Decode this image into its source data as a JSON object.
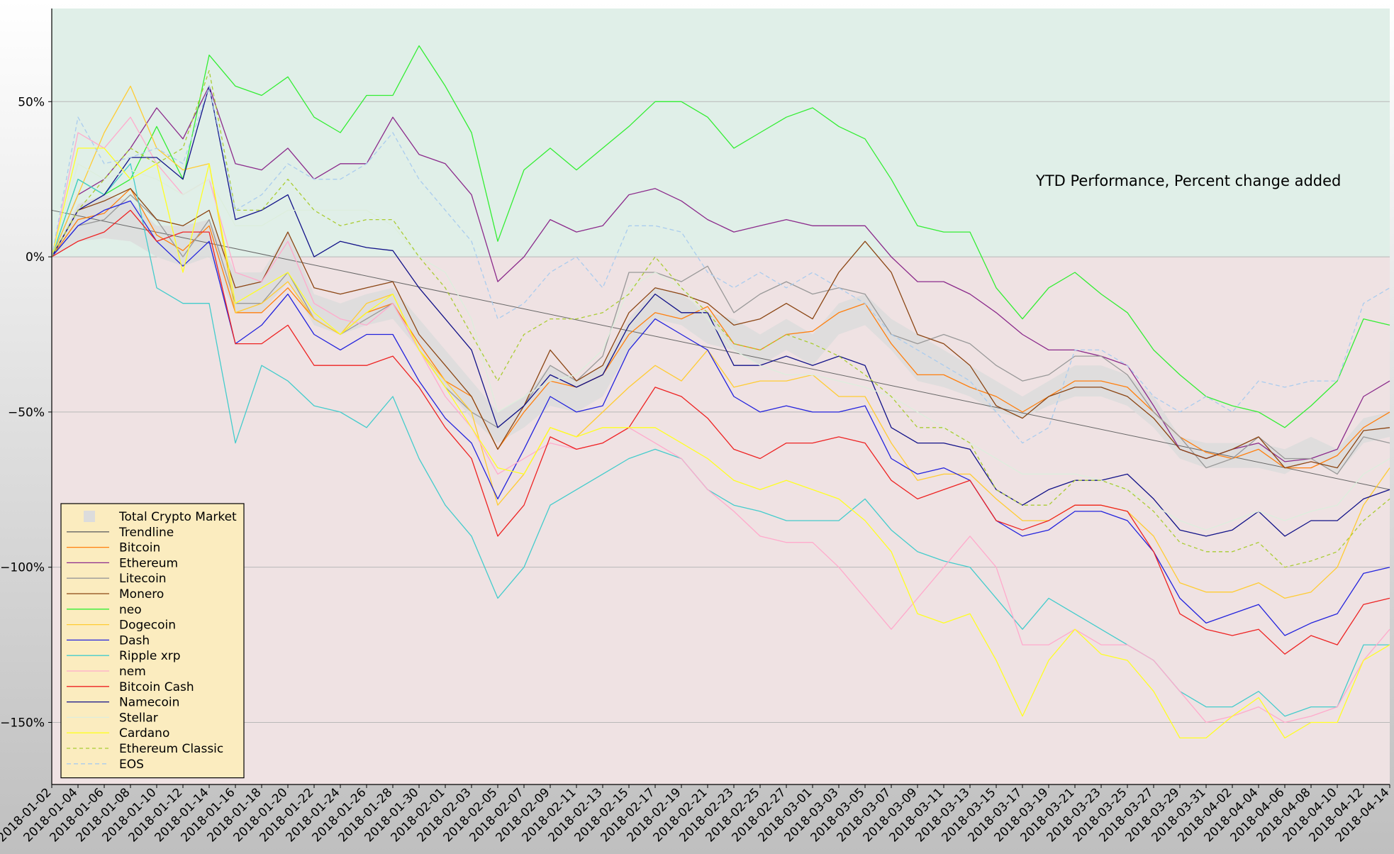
{
  "chart_data": {
    "type": "line",
    "title": "",
    "xlabel": "",
    "ylabel": "",
    "annotation": "YTD  Performance, Percent change added",
    "ylim": [
      -170,
      80
    ],
    "yticks": [
      50,
      0,
      -50,
      -100,
      -150
    ],
    "ytick_labels": [
      "50%",
      "0%",
      "−50%",
      "−100%",
      "−150%"
    ],
    "xlim": [
      "2018-01-02",
      "2018-04-14"
    ],
    "xtick_labels": [
      "2018-01-02",
      "2018-01-04",
      "2018-01-06",
      "2018-01-08",
      "2018-01-10",
      "2018-01-12",
      "2018-01-14",
      "2018-01-16",
      "2018-01-18",
      "2018-01-20",
      "2018-01-22",
      "2018-01-24",
      "2018-01-26",
      "2018-01-28",
      "2018-01-30",
      "2018-02-01",
      "2018-02-03",
      "2018-02-05",
      "2018-02-07",
      "2018-02-09",
      "2018-02-11",
      "2018-02-13",
      "2018-02-15",
      "2018-02-17",
      "2018-02-19",
      "2018-02-21",
      "2018-02-23",
      "2018-02-25",
      "2018-02-27",
      "2018-03-01",
      "2018-03-03",
      "2018-03-05",
      "2018-03-07",
      "2018-03-09",
      "2018-03-11",
      "2018-03-13",
      "2018-03-15",
      "2018-03-17",
      "2018-03-19",
      "2018-03-21",
      "2018-03-23",
      "2018-03-25",
      "2018-03-27",
      "2018-03-29",
      "2018-03-31",
      "2018-04-02",
      "2018-04-04",
      "2018-04-06",
      "2018-04-08",
      "2018-04-10",
      "2018-04-12",
      "2018-04-14"
    ],
    "grid": "horizontal",
    "legend_position": "lower-left",
    "background_bands": {
      "positive": "#e0efe8",
      "negative": "#efe2e3",
      "market_band": "#dcdcdc"
    },
    "dates": [
      "2018-01-02",
      "2018-01-04",
      "2018-01-06",
      "2018-01-08",
      "2018-01-10",
      "2018-01-12",
      "2018-01-14",
      "2018-01-16",
      "2018-01-18",
      "2018-01-20",
      "2018-01-22",
      "2018-01-24",
      "2018-01-26",
      "2018-01-28",
      "2018-01-30",
      "2018-02-01",
      "2018-02-03",
      "2018-02-05",
      "2018-02-07",
      "2018-02-09",
      "2018-02-11",
      "2018-02-13",
      "2018-02-15",
      "2018-02-17",
      "2018-02-19",
      "2018-02-21",
      "2018-02-23",
      "2018-02-25",
      "2018-02-27",
      "2018-03-01",
      "2018-03-03",
      "2018-03-05",
      "2018-03-07",
      "2018-03-09",
      "2018-03-11",
      "2018-03-13",
      "2018-03-15",
      "2018-03-17",
      "2018-03-19",
      "2018-03-21",
      "2018-03-23",
      "2018-03-25",
      "2018-03-27",
      "2018-03-29",
      "2018-03-31",
      "2018-04-02",
      "2018-04-04",
      "2018-04-06",
      "2018-04-08",
      "2018-04-10",
      "2018-04-12",
      "2018-04-14"
    ],
    "market_band": {
      "name": "Total Crypto Market",
      "upper": [
        0,
        17,
        20,
        18,
        10,
        10,
        12,
        -5,
        -5,
        8,
        -12,
        -15,
        -12,
        -10,
        -20,
        -30,
        -40,
        -50,
        -45,
        -35,
        -40,
        -35,
        -20,
        -10,
        -12,
        -18,
        -20,
        -25,
        -20,
        -25,
        -15,
        -12,
        -20,
        -25,
        -30,
        -35,
        -40,
        -45,
        -40,
        -35,
        -35,
        -38,
        -45,
        -58,
        -60,
        -60,
        -60,
        -62,
        -58,
        -62,
        -52,
        -50
      ],
      "lower": [
        0,
        5,
        6,
        5,
        0,
        -3,
        0,
        -18,
        -18,
        -8,
        -22,
        -25,
        -22,
        -20,
        -30,
        -42,
        -52,
        -60,
        -55,
        -48,
        -50,
        -45,
        -30,
        -20,
        -22,
        -28,
        -30,
        -35,
        -30,
        -35,
        -25,
        -22,
        -30,
        -40,
        -42,
        -45,
        -50,
        -52,
        -48,
        -45,
        -45,
        -48,
        -55,
        -65,
        -68,
        -68,
        -68,
        -70,
        -65,
        -70,
        -60,
        -58
      ]
    },
    "trendline": {
      "name": "Trendline",
      "color": "#666666",
      "start": 15,
      "end": -75
    },
    "series": [
      {
        "name": "Bitcoin",
        "color": "#ff7f0e",
        "dash": "",
        "values": [
          0,
          12,
          14,
          22,
          7,
          2,
          10,
          -18,
          -18,
          -10,
          -20,
          -25,
          -18,
          -15,
          -28,
          -40,
          -45,
          -62,
          -50,
          -40,
          -42,
          -38,
          -25,
          -18,
          -20,
          -16,
          -28,
          -30,
          -25,
          -24,
          -18,
          -15,
          -28,
          -38,
          -38,
          -42,
          -45,
          -50,
          -45,
          -40,
          -40,
          -42,
          -50,
          -58,
          -63,
          -65,
          -62,
          -68,
          -68,
          -64,
          -55,
          -50
        ]
      },
      {
        "name": "Ethereum",
        "color": "#8b2a8b",
        "dash": "",
        "values": [
          0,
          20,
          25,
          35,
          48,
          38,
          55,
          30,
          28,
          35,
          25,
          30,
          30,
          45,
          33,
          30,
          20,
          -8,
          0,
          12,
          8,
          10,
          20,
          22,
          18,
          12,
          8,
          10,
          12,
          10,
          10,
          10,
          0,
          -8,
          -8,
          -12,
          -18,
          -25,
          -30,
          -30,
          -32,
          -35,
          -48,
          -62,
          -65,
          -62,
          -60,
          -66,
          -65,
          -62,
          -45,
          -40
        ]
      },
      {
        "name": "Litecoin",
        "color": "#999999",
        "dash": "",
        "values": [
          0,
          10,
          12,
          20,
          12,
          0,
          12,
          -15,
          -15,
          -5,
          -20,
          -25,
          -20,
          -15,
          -30,
          -42,
          -50,
          -55,
          -48,
          -35,
          -40,
          -32,
          -5,
          -5,
          -8,
          -3,
          -18,
          -12,
          -8,
          -12,
          -10,
          -12,
          -25,
          -28,
          -25,
          -28,
          -35,
          -40,
          -38,
          -32,
          -32,
          -38,
          -50,
          -58,
          -68,
          -65,
          -58,
          -65,
          -65,
          -70,
          -58,
          -60
        ]
      },
      {
        "name": "Monero",
        "color": "#8b4513",
        "dash": "",
        "values": [
          0,
          15,
          18,
          22,
          12,
          10,
          15,
          -10,
          -8,
          8,
          -10,
          -12,
          -10,
          -8,
          -25,
          -35,
          -45,
          -62,
          -48,
          -30,
          -40,
          -35,
          -18,
          -10,
          -12,
          -15,
          -22,
          -20,
          -15,
          -20,
          -5,
          5,
          -5,
          -25,
          -28,
          -35,
          -48,
          -52,
          -45,
          -42,
          -42,
          -45,
          -52,
          -62,
          -65,
          -62,
          -58,
          -68,
          -66,
          -68,
          -56,
          -55
        ]
      },
      {
        "name": "neo",
        "color": "#33ee33",
        "dash": "",
        "values": [
          0,
          25,
          20,
          25,
          42,
          25,
          65,
          55,
          52,
          58,
          45,
          40,
          52,
          52,
          68,
          55,
          40,
          5,
          28,
          35,
          28,
          35,
          42,
          50,
          50,
          45,
          35,
          40,
          45,
          48,
          42,
          38,
          25,
          10,
          8,
          8,
          -10,
          -20,
          -10,
          -5,
          -12,
          -18,
          -30,
          -38,
          -45,
          -48,
          -50,
          -55,
          -48,
          -40,
          -20,
          -22
        ]
      },
      {
        "name": "Dogecoin",
        "color": "#ffcc33",
        "dash": "",
        "values": [
          0,
          20,
          40,
          55,
          35,
          28,
          30,
          -18,
          -15,
          -8,
          -20,
          -25,
          -15,
          -12,
          -30,
          -40,
          -50,
          -80,
          -70,
          -55,
          -58,
          -50,
          -42,
          -35,
          -40,
          -30,
          -42,
          -40,
          -40,
          -38,
          -45,
          -45,
          -60,
          -72,
          -70,
          -70,
          -78,
          -85,
          -85,
          -80,
          -80,
          -82,
          -90,
          -105,
          -108,
          -108,
          -105,
          -110,
          -108,
          -100,
          -80,
          -68
        ]
      },
      {
        "name": "Dash",
        "color": "#2222dd",
        "dash": "",
        "values": [
          0,
          10,
          15,
          18,
          5,
          -3,
          5,
          -28,
          -22,
          -12,
          -25,
          -30,
          -25,
          -25,
          -40,
          -52,
          -60,
          -78,
          -62,
          -45,
          -50,
          -48,
          -30,
          -20,
          -25,
          -30,
          -45,
          -50,
          -48,
          -50,
          -50,
          -48,
          -65,
          -70,
          -68,
          -72,
          -85,
          -90,
          -88,
          -82,
          -82,
          -85,
          -95,
          -110,
          -118,
          -115,
          -112,
          -122,
          -118,
          -115,
          -102,
          -100
        ]
      },
      {
        "name": "Ripple xrp",
        "color": "#44cccc",
        "dash": "",
        "values": [
          0,
          25,
          20,
          30,
          -10,
          -15,
          -15,
          -60,
          -35,
          -40,
          -48,
          -50,
          -55,
          -45,
          -65,
          -80,
          -90,
          -110,
          -100,
          -80,
          -75,
          -70,
          -65,
          -62,
          -65,
          -75,
          -80,
          -82,
          -85,
          -85,
          -85,
          -78,
          -88,
          -95,
          -98,
          -100,
          -110,
          -120,
          -110,
          -115,
          -120,
          -125,
          -130,
          -140,
          -145,
          -145,
          -140,
          -148,
          -145,
          -145,
          -125,
          -125
        ]
      },
      {
        "name": "nem",
        "color": "#ffaacc",
        "dash": "",
        "values": [
          0,
          40,
          35,
          45,
          30,
          20,
          25,
          -5,
          -8,
          5,
          -15,
          -20,
          -22,
          -15,
          -30,
          -45,
          -55,
          -70,
          -65,
          -60,
          -62,
          -60,
          -55,
          -60,
          -65,
          -75,
          -82,
          -90,
          -92,
          -92,
          -100,
          -110,
          -120,
          -110,
          -100,
          -90,
          -100,
          -125,
          -125,
          -120,
          -125,
          -125,
          -130,
          -140,
          -150,
          -148,
          -145,
          -150,
          -148,
          -145,
          -130,
          -120
        ]
      },
      {
        "name": "Bitcoin Cash",
        "color": "#ee2222",
        "dash": "",
        "values": [
          0,
          5,
          8,
          15,
          5,
          8,
          8,
          -28,
          -28,
          -22,
          -35,
          -35,
          -35,
          -32,
          -42,
          -55,
          -65,
          -90,
          -80,
          -58,
          -62,
          -60,
          -55,
          -42,
          -45,
          -52,
          -62,
          -65,
          -60,
          -60,
          -58,
          -60,
          -72,
          -78,
          -75,
          -72,
          -85,
          -88,
          -85,
          -80,
          -80,
          -82,
          -95,
          -115,
          -120,
          -122,
          -120,
          -128,
          -122,
          -125,
          -112,
          -110
        ]
      },
      {
        "name": "Namecoin",
        "color": "#111188",
        "dash": "",
        "values": [
          0,
          15,
          20,
          32,
          32,
          25,
          55,
          12,
          15,
          20,
          0,
          5,
          3,
          2,
          -10,
          -20,
          -30,
          -55,
          -48,
          -38,
          -42,
          -38,
          -22,
          -12,
          -18,
          -18,
          -35,
          -35,
          -32,
          -35,
          -32,
          -35,
          -55,
          -60,
          -60,
          -62,
          -75,
          -80,
          -75,
          -72,
          -72,
          -70,
          -78,
          -88,
          -90,
          -88,
          -82,
          -90,
          -85,
          -85,
          -78,
          -75
        ]
      },
      {
        "name": "Stellar",
        "color": "#ddeedd",
        "dash": "",
        "values": [
          0,
          30,
          25,
          28,
          25,
          20,
          25,
          10,
          10,
          15,
          15,
          15,
          15,
          10,
          0,
          -5,
          -20,
          -50,
          -45,
          -40,
          -38,
          -30,
          -10,
          -5,
          -10,
          -20,
          -30,
          -35,
          -38,
          -38,
          -40,
          -42,
          -45,
          -50,
          -55,
          -60,
          -65,
          -70,
          -70,
          -70,
          -72,
          -75,
          -80,
          -85,
          -88,
          -85,
          -82,
          -85,
          -82,
          -80,
          -70,
          -65
        ]
      },
      {
        "name": "Cardano",
        "color": "#ffff22",
        "dash": "",
        "values": [
          0,
          35,
          35,
          25,
          30,
          -5,
          30,
          -15,
          -10,
          -5,
          -18,
          -25,
          -18,
          -12,
          -30,
          -42,
          -55,
          -68,
          -70,
          -55,
          -58,
          -55,
          -55,
          -55,
          -60,
          -65,
          -72,
          -75,
          -72,
          -75,
          -78,
          -85,
          -95,
          -115,
          -118,
          -115,
          -130,
          -148,
          -130,
          -120,
          -128,
          -130,
          -140,
          -155,
          -155,
          -148,
          -142,
          -155,
          -150,
          -150,
          -130,
          -125
        ]
      },
      {
        "name": "Ethereum Classic",
        "color": "#aacc33",
        "dash": "5,4",
        "values": [
          0,
          15,
          25,
          35,
          30,
          35,
          60,
          15,
          15,
          25,
          15,
          10,
          12,
          12,
          0,
          -10,
          -25,
          -40,
          -25,
          -20,
          -20,
          -18,
          -12,
          0,
          -10,
          -18,
          -28,
          -30,
          -25,
          -28,
          -32,
          -38,
          -45,
          -55,
          -55,
          -60,
          -75,
          -80,
          -80,
          -72,
          -72,
          -75,
          -82,
          -92,
          -95,
          -95,
          -92,
          -100,
          -98,
          -95,
          -85,
          -78
        ]
      },
      {
        "name": "EOS",
        "color": "#aaccee",
        "dash": "6,4",
        "values": [
          0,
          45,
          30,
          32,
          35,
          30,
          55,
          15,
          20,
          30,
          25,
          25,
          30,
          40,
          25,
          15,
          5,
          -20,
          -15,
          -5,
          0,
          -10,
          10,
          10,
          8,
          -5,
          -10,
          -5,
          -10,
          -5,
          -10,
          -15,
          -25,
          -30,
          -35,
          -40,
          -50,
          -60,
          -55,
          -30,
          -30,
          -35,
          -45,
          -50,
          -45,
          -50,
          -40,
          -42,
          -40,
          -40,
          -15,
          -10
        ]
      }
    ]
  }
}
